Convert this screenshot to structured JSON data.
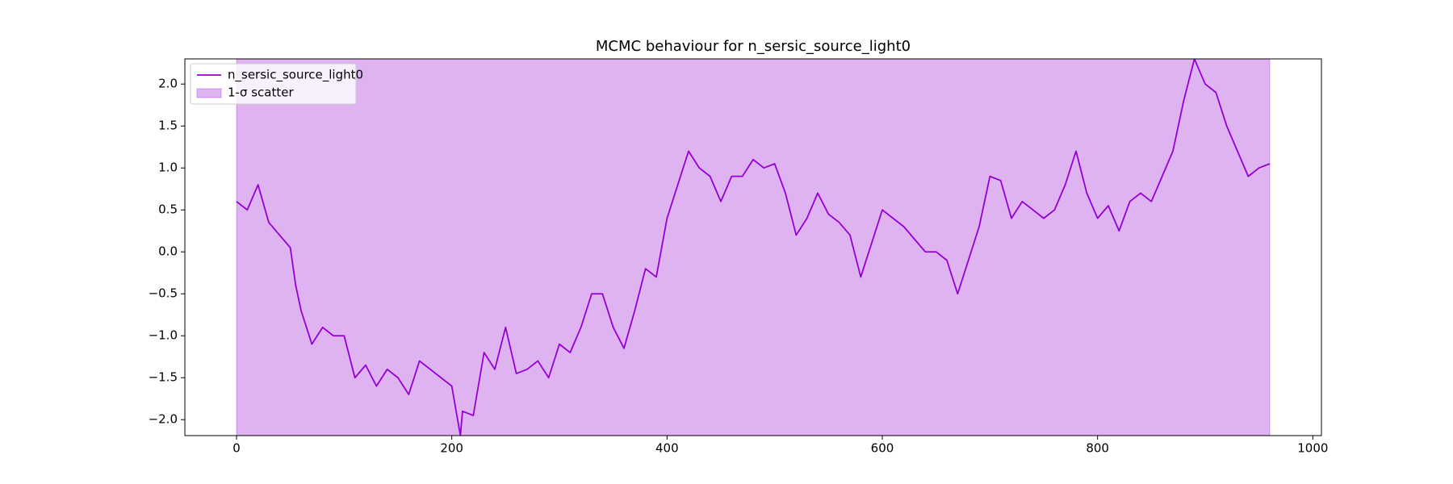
{
  "chart_data": {
    "type": "line",
    "title": "MCMC behaviour for n_sersic_source_light0",
    "series": [
      {
        "name": "n_sersic_source_light0",
        "color": "#9400d3",
        "x": [
          0,
          10,
          20,
          30,
          40,
          50,
          55,
          60,
          70,
          80,
          90,
          100,
          110,
          120,
          130,
          140,
          150,
          160,
          170,
          180,
          190,
          200,
          208,
          210,
          220,
          230,
          240,
          250,
          260,
          270,
          280,
          290,
          300,
          310,
          320,
          330,
          340,
          350,
          360,
          370,
          380,
          390,
          400,
          410,
          420,
          430,
          440,
          450,
          460,
          470,
          480,
          490,
          500,
          510,
          520,
          530,
          540,
          550,
          560,
          570,
          580,
          590,
          600,
          610,
          620,
          630,
          640,
          650,
          660,
          670,
          680,
          690,
          700,
          710,
          720,
          730,
          740,
          750,
          760,
          770,
          780,
          790,
          800,
          810,
          820,
          830,
          840,
          850,
          860,
          870,
          880,
          890,
          900,
          910,
          920,
          930,
          940,
          950,
          960
        ],
        "values": [
          0.6,
          0.5,
          0.8,
          0.35,
          0.2,
          0.05,
          -0.4,
          -0.7,
          -1.1,
          -0.9,
          -1.0,
          -1.0,
          -1.5,
          -1.35,
          -1.6,
          -1.4,
          -1.5,
          -1.7,
          -1.3,
          -1.4,
          -1.5,
          -1.6,
          -2.19,
          -1.9,
          -1.95,
          -1.2,
          -1.4,
          -0.9,
          -1.45,
          -1.4,
          -1.3,
          -1.5,
          -1.1,
          -1.2,
          -0.9,
          -0.5,
          -0.5,
          -0.9,
          -1.15,
          -0.7,
          -0.2,
          -0.3,
          0.4,
          0.8,
          1.2,
          1.0,
          0.9,
          0.6,
          0.9,
          0.9,
          1.1,
          1.0,
          1.05,
          0.7,
          0.2,
          0.4,
          0.7,
          0.45,
          0.35,
          0.2,
          -0.3,
          0.1,
          0.5,
          0.4,
          0.3,
          0.15,
          0.0,
          0.0,
          -0.1,
          -0.5,
          -0.1,
          0.3,
          0.9,
          0.85,
          0.4,
          0.6,
          0.5,
          0.4,
          0.5,
          0.8,
          1.2,
          0.7,
          0.4,
          0.55,
          0.25,
          0.6,
          0.7,
          0.6,
          0.9,
          1.2,
          1.8,
          2.3,
          2.0,
          1.9,
          1.5,
          1.2,
          0.9,
          1.0,
          1.05
        ]
      }
    ],
    "band": {
      "name": "1-σ scatter",
      "color": "#9400d3",
      "x": [
        0,
        960
      ],
      "lower": [
        -2.19,
        -2.19
      ],
      "upper": [
        2.3,
        2.3
      ]
    },
    "xlim": [
      -48,
      1008
    ],
    "xticks": [
      0,
      200,
      400,
      600,
      800,
      1000
    ],
    "ylim": [
      -2.19,
      2.3
    ],
    "yticks": [
      {
        "value": -2,
        "label": "−2.0"
      },
      {
        "value": -1.5,
        "label": "−1.5"
      },
      {
        "value": -1,
        "label": "−1.0"
      },
      {
        "value": -0.5,
        "label": "−0.5"
      },
      {
        "value": 0,
        "label": "0.0"
      },
      0.5,
      {
        "value": 1,
        "label": "1.0"
      },
      1.5,
      {
        "value": 2,
        "label": "2.0"
      }
    ],
    "legend": "upper left"
  }
}
